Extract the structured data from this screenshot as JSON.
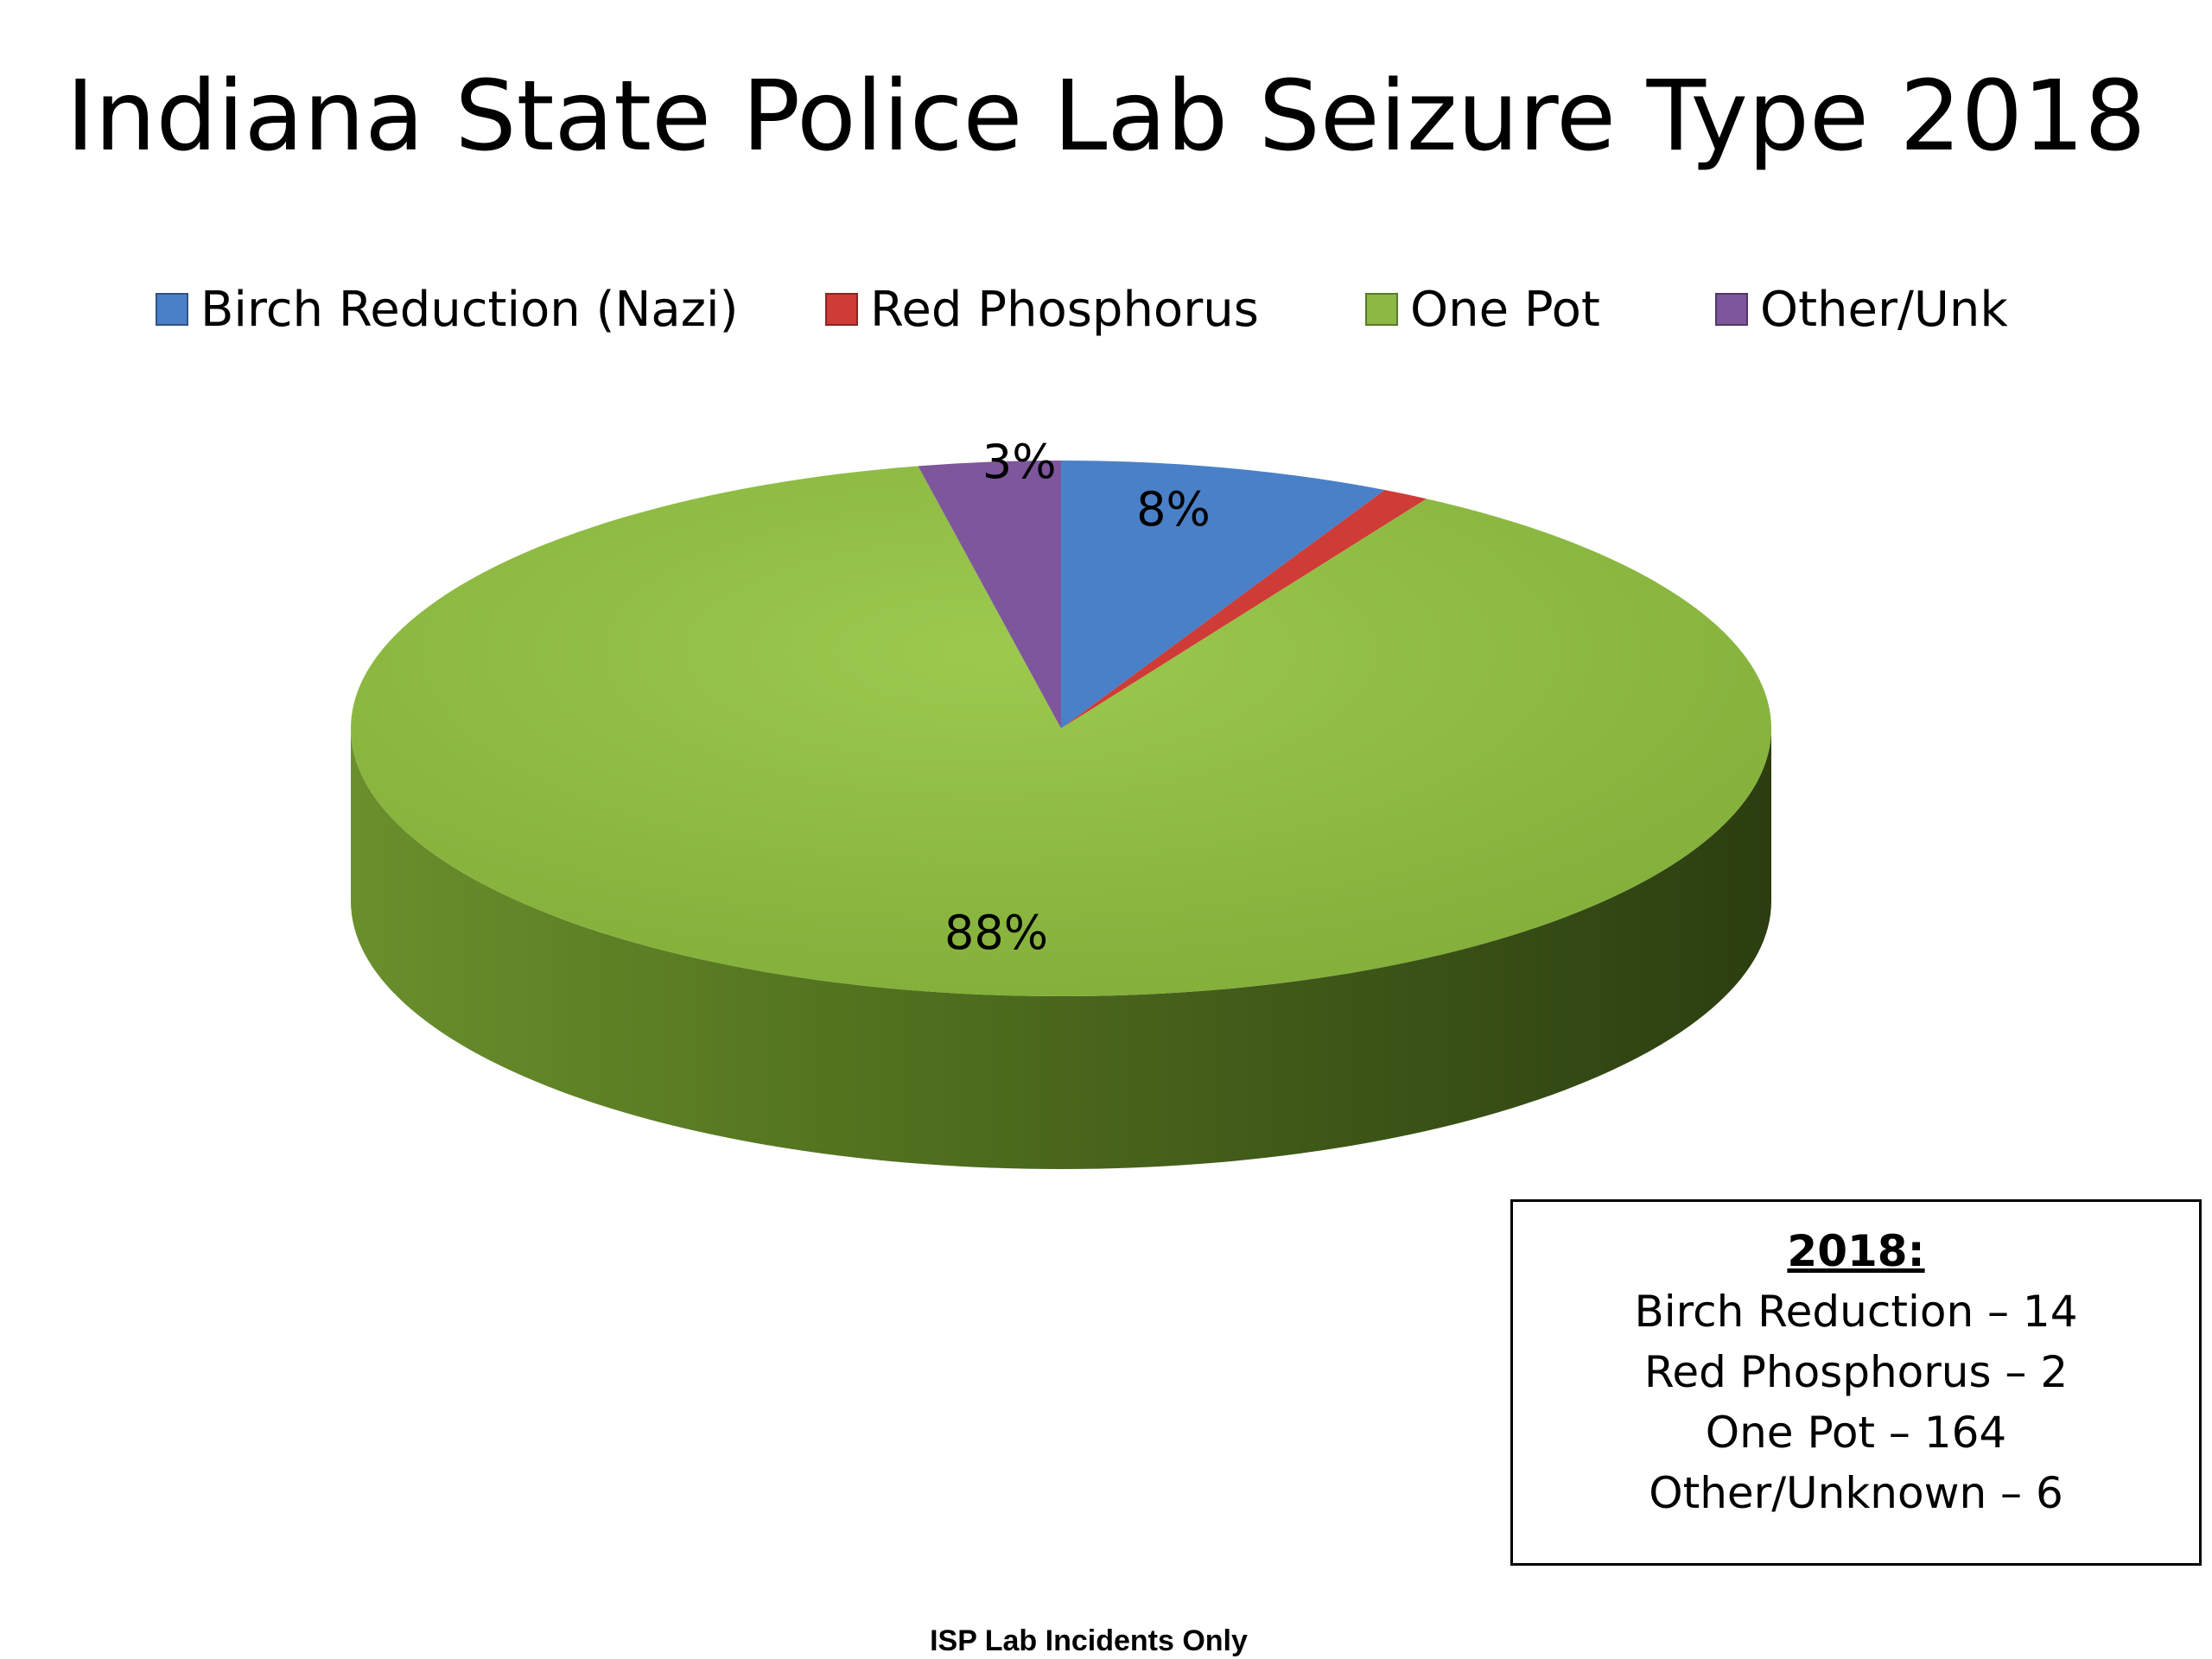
{
  "chart_data": {
    "type": "pie",
    "title": "Indiana State Police Lab Seizure Type 2018",
    "legend_position": "top",
    "slices": [
      {
        "name": "Birch Reduction (Nazi)",
        "value": 14,
        "label": "8%",
        "color": "#4a80c8"
      },
      {
        "name": "Red Phosphorus",
        "value": 2,
        "label": "",
        "color": "#cf3b36"
      },
      {
        "name": "One Pot",
        "value": 164,
        "label": "88%",
        "color": "#8db843"
      },
      {
        "name": "Other/Unk",
        "value": 6,
        "label": "3%",
        "color": "#7d569c"
      }
    ]
  },
  "summary": {
    "heading": "2018:",
    "lines": [
      "Birch Reduction – 14",
      "Red Phosphorus – 2",
      "One Pot – 164",
      "Other/Unknown – 6"
    ]
  },
  "footnote": "ISP Lab Incidents Only"
}
